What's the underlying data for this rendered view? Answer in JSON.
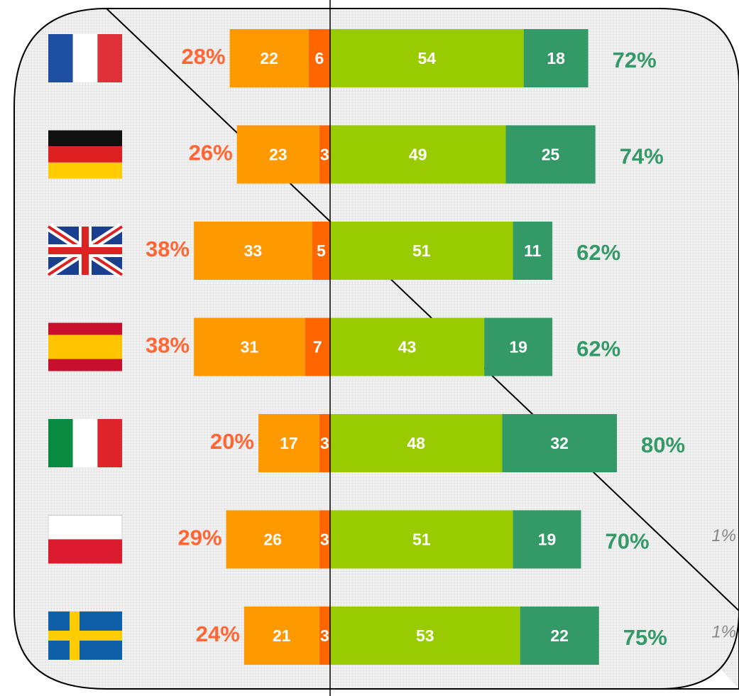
{
  "chart_data": {
    "type": "diverging_bar",
    "categories": [
      null,
      null,
      null,
      null,
      null,
      null,
      null
    ],
    "series": [
      {
        "color": "#ff6600",
        "side": "left",
        "values": [
          6,
          3,
          5,
          7,
          3,
          3,
          3
        ]
      },
      {
        "color": "#ff9900",
        "side": "left",
        "values": [
          22,
          23,
          33,
          31,
          17,
          26,
          21
        ]
      },
      {
        "color": "#99cc00",
        "side": "right",
        "values": [
          54,
          49,
          51,
          43,
          48,
          51,
          53
        ]
      },
      {
        "color": "#339966",
        "side": "right",
        "values": [
          18,
          25,
          11,
          19,
          32,
          19,
          22
        ]
      }
    ],
    "left_totals": {
      "color": "#ff6633",
      "values": [
        28,
        26,
        38,
        38,
        20,
        29,
        24
      ],
      "value_labels": [
        "28%",
        "26%",
        "38%",
        "38%",
        "20%",
        "29%",
        "24%"
      ]
    },
    "right_totals": {
      "color": "#339966",
      "values": [
        72,
        74,
        62,
        62,
        80,
        70,
        75
      ],
      "value_labels": [
        "72%",
        "74%",
        "62%",
        "62%",
        "80%",
        "70%",
        "75%"
      ]
    },
    "other": {
      "values": [
        null,
        null,
        null,
        null,
        null,
        1,
        1
      ],
      "value_labels": [
        null,
        null,
        null,
        null,
        null,
        "1%",
        "1%"
      ]
    }
  }
}
